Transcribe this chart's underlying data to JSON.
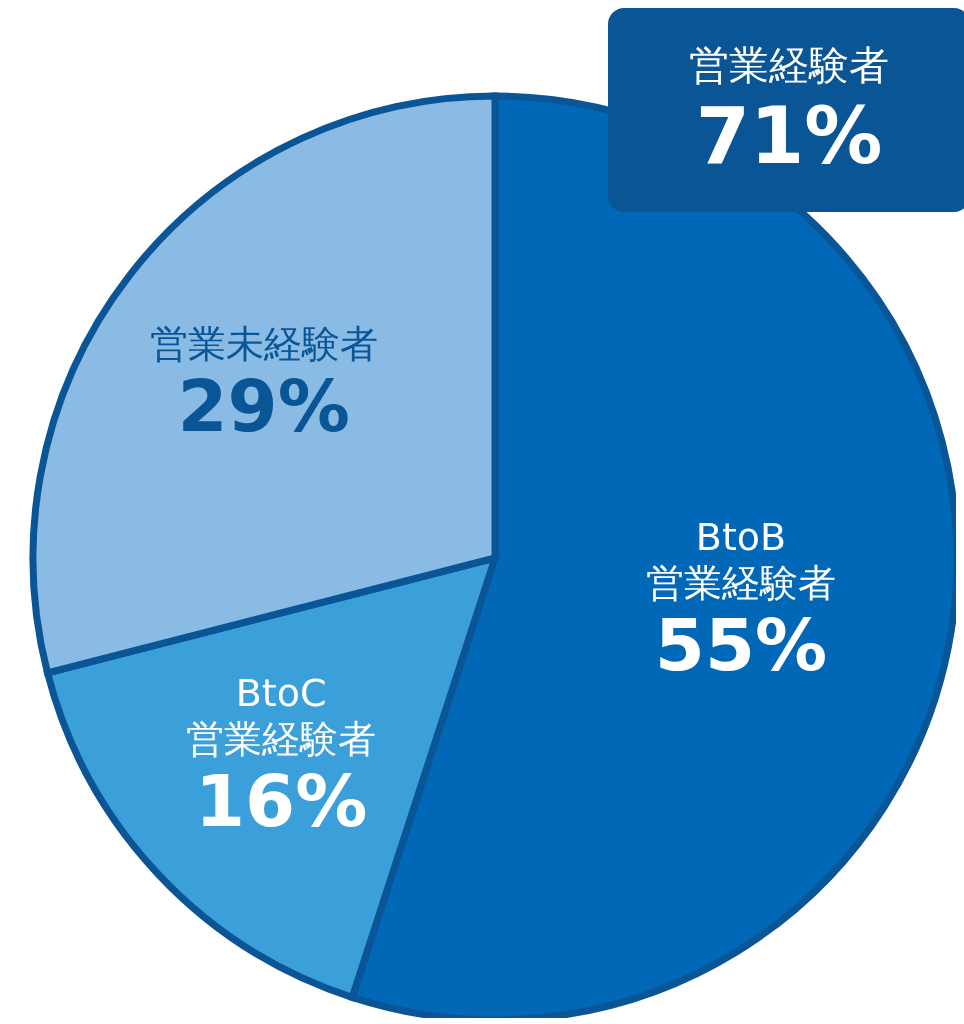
{
  "chart_data": {
    "type": "pie",
    "categories": [
      "BtoB\n営業経験者",
      "BtoC\n営業経験者",
      "営業未経験者"
    ],
    "values": [
      55,
      16,
      29
    ],
    "colors": [
      "#0068b7",
      "#3ba0da",
      "#8abbe4"
    ],
    "value_labels": [
      "55%",
      "16%",
      "29%"
    ],
    "annotations": [
      "営業経験者",
      "71%"
    ]
  }
}
